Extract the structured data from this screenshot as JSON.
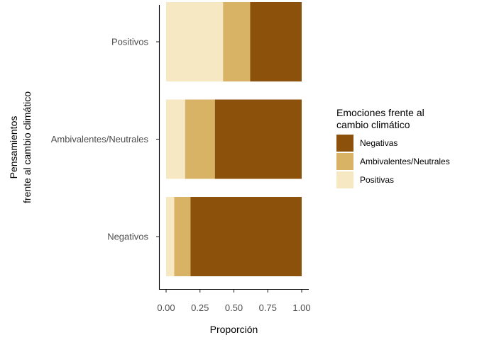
{
  "chart_data": {
    "type": "bar",
    "orientation": "horizontal",
    "stacked": true,
    "categories": [
      "Negativos",
      "Ambivalentes/Neutrales",
      "Positivos"
    ],
    "series": [
      {
        "name": "Positivas",
        "color": "#F6E8C3",
        "values": [
          0.06,
          0.14,
          0.42
        ]
      },
      {
        "name": "Ambivalentes/Neutrales",
        "color": "#D9B365",
        "values": [
          0.12,
          0.22,
          0.2
        ]
      },
      {
        "name": "Negativas",
        "color": "#8C510A",
        "values": [
          0.82,
          0.64,
          0.38
        ]
      }
    ],
    "xlabel": "Proporción",
    "ylabel_lines": [
      "Pensamientos",
      "frente al cambio climático"
    ],
    "xlim": [
      0,
      1
    ],
    "xticks": [
      0,
      0.25,
      0.5,
      0.75,
      1
    ],
    "xtick_labels": [
      "0.00",
      "0.25",
      "0.50",
      "0.75",
      "1.00"
    ],
    "legend": {
      "title_lines": [
        "Emociones frente al",
        "cambio climático"
      ],
      "position": "right",
      "entries": [
        {
          "label": "Negativas",
          "color": "#8C510A"
        },
        {
          "label": "Ambivalentes/Neutrales",
          "color": "#D9B365"
        },
        {
          "label": "Positivas",
          "color": "#F6E8C3"
        }
      ]
    },
    "grid": false
  }
}
